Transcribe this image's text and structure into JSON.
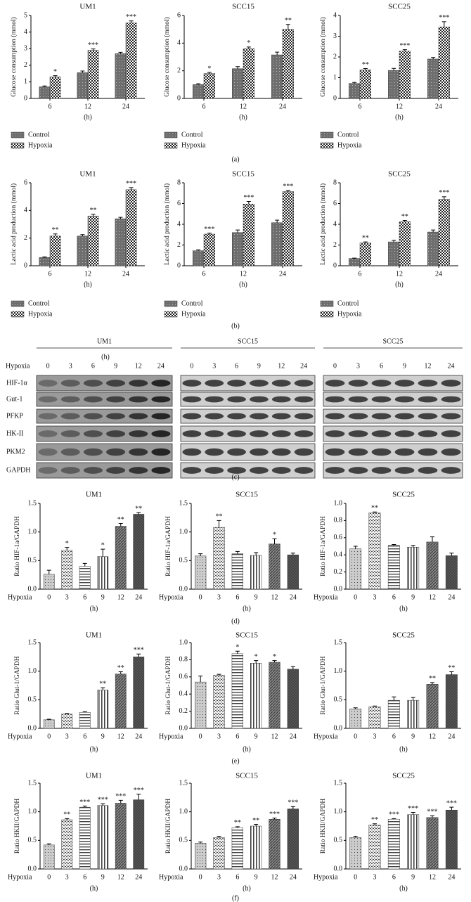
{
  "chart_data": [
    {
      "type": "grouped_bar",
      "title": "UM1",
      "ylabel": "Glucose consumption (mmol)",
      "xlabel": "(h)",
      "categories": [
        "6",
        "12",
        "24"
      ],
      "ylim": [
        0,
        5
      ],
      "yticks": [
        0,
        1,
        2,
        3,
        4,
        5
      ],
      "series": [
        {
          "name": "Control",
          "color": "#6e6e6e",
          "values": [
            0.7,
            1.55,
            2.7
          ],
          "errors": [
            0.05,
            0.1,
            0.08
          ]
        },
        {
          "name": "Hypoxia",
          "color": "#222222",
          "values": [
            1.3,
            2.9,
            4.55
          ],
          "errors": [
            0.07,
            0.08,
            0.12
          ],
          "annotations": [
            "*",
            "***",
            "***"
          ]
        }
      ]
    },
    {
      "type": "grouped_bar",
      "title": "SCC15",
      "ylabel": "Glucose consumption (mmol)",
      "xlabel": "(h)",
      "categories": [
        "6",
        "12",
        "24"
      ],
      "ylim": [
        0,
        6
      ],
      "yticks": [
        0,
        2,
        4,
        6
      ],
      "series": [
        {
          "name": "Control",
          "color": "#6e6e6e",
          "values": [
            1.0,
            2.15,
            3.15
          ],
          "errors": [
            0.06,
            0.15,
            0.2
          ]
        },
        {
          "name": "Hypoxia",
          "color": "#222222",
          "values": [
            1.8,
            3.6,
            5.0
          ],
          "errors": [
            0.08,
            0.12,
            0.35
          ],
          "annotations": [
            "*",
            "*",
            "**"
          ]
        }
      ]
    },
    {
      "type": "grouped_bar",
      "title": "SCC25",
      "ylabel": "Glucose consumption (mmol)",
      "xlabel": "(h)",
      "categories": [
        "6",
        "12",
        "24"
      ],
      "ylim": [
        0,
        4
      ],
      "yticks": [
        0,
        1,
        2,
        3,
        4
      ],
      "series": [
        {
          "name": "Control",
          "color": "#6e6e6e",
          "values": [
            0.72,
            1.35,
            1.9
          ],
          "errors": [
            0.05,
            0.1,
            0.08
          ]
        },
        {
          "name": "Hypoxia",
          "color": "#222222",
          "values": [
            1.38,
            2.28,
            3.45
          ],
          "errors": [
            0.06,
            0.07,
            0.25
          ],
          "annotations": [
            "**",
            "***",
            "***"
          ]
        }
      ]
    },
    {
      "type": "grouped_bar",
      "title": "UM1",
      "ylabel": "Lactic acid production (mmol)",
      "xlabel": "(h)",
      "categories": [
        "6",
        "12",
        "24"
      ],
      "ylim": [
        0,
        6
      ],
      "yticks": [
        0,
        2,
        4,
        6
      ],
      "series": [
        {
          "name": "Control",
          "color": "#6e6e6e",
          "values": [
            0.6,
            2.15,
            3.4
          ],
          "errors": [
            0.04,
            0.1,
            0.1
          ]
        },
        {
          "name": "Hypoxia",
          "color": "#222222",
          "values": [
            2.15,
            3.6,
            5.5
          ],
          "errors": [
            0.15,
            0.12,
            0.15
          ],
          "annotations": [
            "**",
            "**",
            "***"
          ]
        }
      ]
    },
    {
      "type": "grouped_bar",
      "title": "SCC15",
      "ylabel": "Lactic acid production (mmol)",
      "xlabel": "(h)",
      "categories": [
        "6",
        "12",
        "24"
      ],
      "ylim": [
        0,
        8
      ],
      "yticks": [
        0,
        2,
        4,
        6,
        8
      ],
      "series": [
        {
          "name": "Control",
          "color": "#6e6e6e",
          "values": [
            1.45,
            3.2,
            4.15
          ],
          "errors": [
            0.08,
            0.25,
            0.25
          ]
        },
        {
          "name": "Hypoxia",
          "color": "#222222",
          "values": [
            3.05,
            5.95,
            7.15
          ],
          "errors": [
            0.1,
            0.25,
            0.12
          ],
          "annotations": [
            "***",
            "***",
            "***"
          ]
        }
      ]
    },
    {
      "type": "grouped_bar",
      "title": "SCC25",
      "ylabel": "Lactic acid production (mmol)",
      "xlabel": "(h)",
      "categories": [
        "6",
        "12",
        "24"
      ],
      "ylim": [
        0,
        8
      ],
      "yticks": [
        0,
        2,
        4,
        6,
        8
      ],
      "series": [
        {
          "name": "Control",
          "color": "#6e6e6e",
          "values": [
            0.7,
            2.3,
            3.25
          ],
          "errors": [
            0.04,
            0.15,
            0.2
          ]
        },
        {
          "name": "Hypoxia",
          "color": "#222222",
          "values": [
            2.2,
            4.25,
            6.4
          ],
          "errors": [
            0.1,
            0.12,
            0.25
          ],
          "annotations": [
            "**",
            "**",
            "***"
          ]
        }
      ]
    },
    {
      "type": "pattern_bar",
      "title": "UM1",
      "ylabel": "Ratio HIF-1a/GAPDH",
      "xlabel": "(h)",
      "xaxis_title": "Hypoxia",
      "categories": [
        "0",
        "3",
        "6",
        "9",
        "12",
        "24"
      ],
      "color": "#444444",
      "ylim": [
        0,
        1.5
      ],
      "yticks": [
        {
          "value": 0,
          "label": "0.0"
        },
        0.5,
        {
          "value": 1,
          "label": "1.0"
        },
        1.5
      ],
      "values": [
        0.26,
        0.68,
        0.4,
        0.57,
        1.1,
        1.31
      ],
      "errors": [
        0.07,
        0.05,
        0.05,
        0.13,
        0.05,
        0.03
      ],
      "annotations": [
        null,
        "*",
        null,
        "*",
        "**",
        "**"
      ]
    },
    {
      "type": "pattern_bar",
      "title": "SCC15",
      "ylabel": "Ratio HIF-1a/GAPDH",
      "xlabel": "(h)",
      "xaxis_title": "Hypoxia",
      "categories": [
        "0",
        "3",
        "6",
        "9",
        "12",
        "24"
      ],
      "color": "#444444",
      "ylim": [
        0,
        1.5
      ],
      "yticks": [
        {
          "value": 0,
          "label": "0.0"
        },
        0.5,
        {
          "value": 1,
          "label": "1.0"
        },
        1.5
      ],
      "values": [
        0.58,
        1.08,
        0.62,
        0.59,
        0.79,
        0.6
      ],
      "errors": [
        0.04,
        0.12,
        0.04,
        0.05,
        0.09,
        0.03
      ],
      "annotations": [
        null,
        "**",
        null,
        null,
        "*",
        null
      ]
    },
    {
      "type": "pattern_bar",
      "title": "SCC25",
      "ylabel": "Ratio HIF-1a/GAPDH",
      "xlabel": "(h)",
      "xaxis_title": "Hypoxia",
      "categories": [
        "0",
        "3",
        "6",
        "9",
        "12",
        "24"
      ],
      "color": "#444444",
      "ylim": [
        0,
        1
      ],
      "yticks": [
        {
          "value": 0,
          "label": "0.0"
        },
        0.2,
        0.4,
        0.6,
        0.8,
        {
          "value": 1,
          "label": "1.0"
        }
      ],
      "values": [
        0.47,
        0.89,
        0.51,
        0.49,
        0.55,
        0.39
      ],
      "errors": [
        0.03,
        0.01,
        0.01,
        0.02,
        0.06,
        0.03
      ],
      "annotations": [
        null,
        "**",
        null,
        null,
        null,
        null
      ]
    },
    {
      "type": "pattern_bar",
      "title": "UM1",
      "ylabel": "Ratio Glut-1/GAPDH",
      "xlabel": "(h)",
      "xaxis_title": "Hypoxia",
      "categories": [
        "0",
        "3",
        "6",
        "9",
        "12",
        "24"
      ],
      "color": "#444444",
      "ylim": [
        0,
        1.5
      ],
      "yticks": [
        {
          "value": 0,
          "label": "0.0"
        },
        0.5,
        {
          "value": 1,
          "label": "1.0"
        },
        1.5
      ],
      "values": [
        0.15,
        0.25,
        0.28,
        0.67,
        0.95,
        1.25
      ],
      "errors": [
        0.01,
        0.01,
        0.01,
        0.04,
        0.04,
        0.05
      ],
      "annotations": [
        null,
        null,
        null,
        "**",
        "**",
        "***"
      ]
    },
    {
      "type": "pattern_bar",
      "title": "SCC15",
      "ylabel": "Ratio Glut-1/GAPDH",
      "xlabel": "(h)",
      "xaxis_title": "Hypoxia",
      "categories": [
        "0",
        "3",
        "6",
        "9",
        "12",
        "24"
      ],
      "color": "#444444",
      "ylim": [
        0,
        1
      ],
      "yticks": [
        {
          "value": 0,
          "label": "0.0"
        },
        0.2,
        0.4,
        0.6,
        0.8,
        {
          "value": 1,
          "label": "1.0"
        }
      ],
      "values": [
        0.54,
        0.62,
        0.87,
        0.76,
        0.77,
        0.69
      ],
      "errors": [
        0.07,
        0.01,
        0.03,
        0.03,
        0.02,
        0.03
      ],
      "annotations": [
        null,
        null,
        "*",
        "*",
        "*",
        null
      ]
    },
    {
      "type": "pattern_bar",
      "title": "SCC25",
      "ylabel": "Ratio Glut-1/GAPDH",
      "xlabel": "(h)",
      "xaxis_title": "Hypoxia",
      "categories": [
        "0",
        "3",
        "6",
        "9",
        "12",
        "24"
      ],
      "color": "#444444",
      "ylim": [
        0,
        1.5
      ],
      "yticks": [
        {
          "value": 0,
          "label": "0.0"
        },
        0.5,
        {
          "value": 1,
          "label": "1.0"
        },
        1.5
      ],
      "values": [
        0.34,
        0.38,
        0.49,
        0.49,
        0.77,
        0.94
      ],
      "errors": [
        0.02,
        0.01,
        0.06,
        0.05,
        0.03,
        0.05
      ],
      "annotations": [
        null,
        null,
        null,
        null,
        "**",
        "**"
      ]
    },
    {
      "type": "pattern_bar",
      "title": "UM1",
      "ylabel": "Ratio HKII/GAPDH",
      "xlabel": "(h)",
      "xaxis_title": "Hypoxia",
      "categories": [
        "0",
        "3",
        "6",
        "9",
        "12",
        "24"
      ],
      "color": "#444444",
      "ylim": [
        0,
        1.5
      ],
      "yticks": [
        {
          "value": 0,
          "label": "0.0"
        },
        0.5,
        {
          "value": 1,
          "label": "1.0"
        },
        1.5
      ],
      "values": [
        0.42,
        0.86,
        1.08,
        1.11,
        1.15,
        1.21
      ],
      "errors": [
        0.02,
        0.02,
        0.02,
        0.03,
        0.05,
        0.1
      ],
      "annotations": [
        null,
        "**",
        "***",
        "***",
        "***",
        "***"
      ]
    },
    {
      "type": "pattern_bar",
      "title": "SCC15",
      "ylabel": "Ratio HKII/GAPDH",
      "xlabel": "(h)",
      "xaxis_title": "Hypoxia",
      "categories": [
        "0",
        "3",
        "6",
        "9",
        "12",
        "24"
      ],
      "color": "#444444",
      "ylim": [
        0,
        1.5
      ],
      "yticks": [
        {
          "value": 0,
          "label": "0.0"
        },
        0.5,
        {
          "value": 1,
          "label": "1.0"
        },
        1.5
      ],
      "values": [
        0.45,
        0.55,
        0.72,
        0.75,
        0.87,
        1.05
      ],
      "errors": [
        0.02,
        0.02,
        0.02,
        0.03,
        0.02,
        0.04
      ],
      "annotations": [
        null,
        null,
        "**",
        "**",
        "***",
        "***"
      ]
    },
    {
      "type": "pattern_bar",
      "title": "SCC25",
      "ylabel": "Ratio HKII/GAPDH",
      "xlabel": "(h)",
      "xaxis_title": "Hypoxia",
      "categories": [
        "0",
        "3",
        "6",
        "9",
        "12",
        "24"
      ],
      "color": "#444444",
      "ylim": [
        0,
        1.5
      ],
      "yticks": [
        {
          "value": 0,
          "label": "0.0"
        },
        0.5,
        {
          "value": 1,
          "label": "1.0"
        },
        1.5
      ],
      "values": [
        0.55,
        0.77,
        0.87,
        0.95,
        0.9,
        1.03
      ],
      "errors": [
        0.02,
        0.02,
        0.01,
        0.04,
        0.03,
        0.05
      ],
      "annotations": [
        null,
        "**",
        "***",
        "***",
        "***",
        "***"
      ]
    }
  ],
  "blot": {
    "groups": [
      "UM1",
      "SCC15",
      "SCC25"
    ],
    "xlabel": "(h)",
    "row_title": "Hypoxia",
    "lanes": [
      "0",
      "3",
      "6",
      "9",
      "12",
      "24"
    ],
    "proteins": [
      "HIF-1α",
      "Gut-1",
      "PFKP",
      "HK-II",
      "PKM2",
      "GAPDH"
    ]
  },
  "panels": [
    "(a)",
    "(b)",
    "(c)",
    "(d)",
    "(e)",
    "(f)"
  ]
}
